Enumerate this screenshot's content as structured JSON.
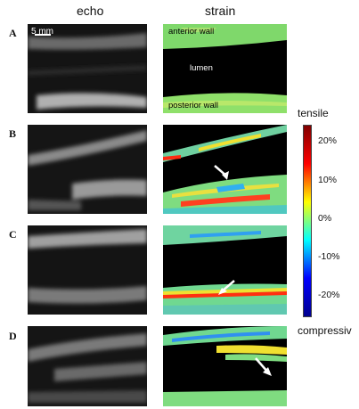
{
  "headers": {
    "echo": "echo",
    "strain": "strain"
  },
  "rows": [
    {
      "label": "A"
    },
    {
      "label": "B"
    },
    {
      "label": "C"
    },
    {
      "label": "D"
    }
  ],
  "scale_bar": {
    "label": "5 mm"
  },
  "region_labels": {
    "anterior": "anterior wall",
    "lumen": "lumen",
    "posterior": "posterior wall"
  },
  "colorbar": {
    "top_label": "tensile",
    "bottom_label": "compressiv",
    "ticks": [
      "20%",
      "10%",
      "0%",
      "-10%",
      "-20%"
    ],
    "colors": [
      "#800000",
      "#ff0000",
      "#ffff00",
      "#00ffff",
      "#0000ff",
      "#00008f"
    ]
  }
}
